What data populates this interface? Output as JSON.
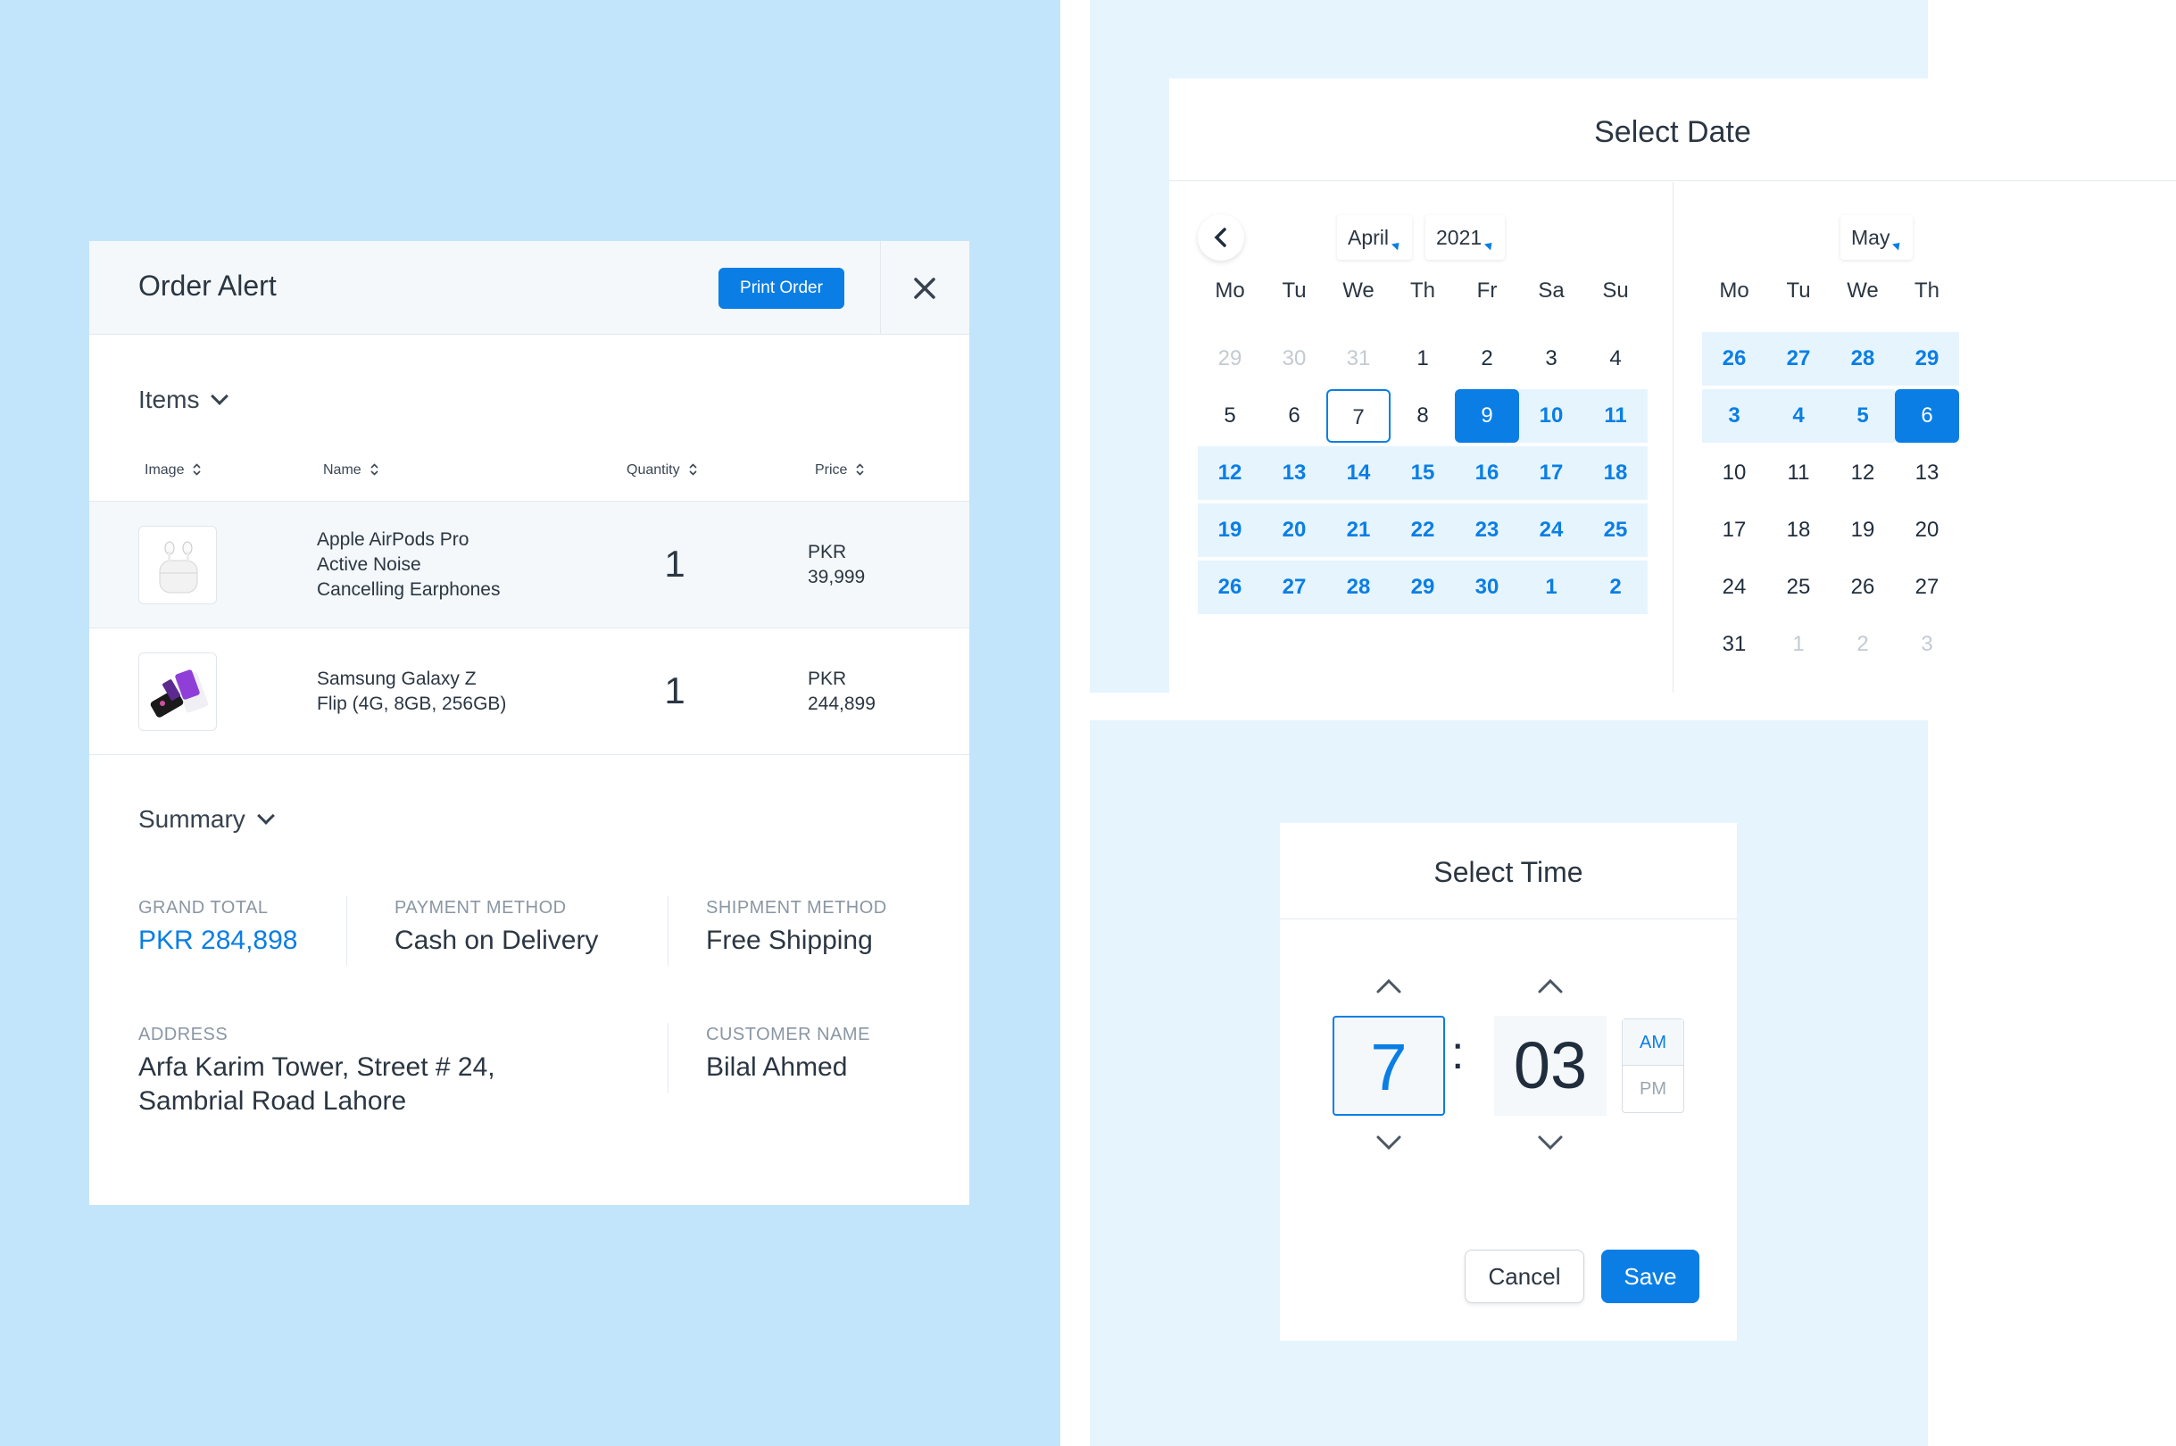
{
  "order": {
    "title": "Order Alert",
    "print_label": "Print Order",
    "items_title": "Items",
    "columns": [
      "Image",
      "Name",
      "Quantity",
      "Price"
    ],
    "items": [
      {
        "name_lines": [
          "Apple AirPods Pro",
          "Active Noise",
          "Cancelling Earphones"
        ],
        "quantity": "1",
        "price_lines": [
          "PKR",
          "39,999"
        ]
      },
      {
        "name_lines": [
          "Samsung Galaxy Z",
          "Flip (4G, 8GB, 256GB)"
        ],
        "quantity": "1",
        "price_lines": [
          "PKR",
          "244,899"
        ]
      }
    ],
    "summary_title": "Summary",
    "summary": {
      "grand_total_label": "GRAND TOTAL",
      "grand_total": "PKR 284,898",
      "payment_label": "PAYMENT METHOD",
      "payment": "Cash on Delivery",
      "shipment_label": "SHIPMENT METHOD",
      "shipment": "Free Shipping",
      "address_label": "ADDRESS",
      "address_lines": [
        "Arfa Karim Tower, Street # 24,",
        "Sambrial Road Lahore"
      ],
      "customer_label": "CUSTOMER NAME",
      "customer": "Bilal Ahmed"
    },
    "accent_color": "#0a7ee5"
  },
  "date_picker": {
    "title": "Select Date",
    "weekdays": [
      "Mo",
      "Tu",
      "We",
      "Th",
      "Fr",
      "Sa",
      "Su"
    ],
    "left": {
      "month": "April",
      "year": "2021",
      "weeks": [
        [
          {
            "d": "29",
            "s": "muted"
          },
          {
            "d": "30",
            "s": "muted"
          },
          {
            "d": "31",
            "s": "muted"
          },
          {
            "d": "1"
          },
          {
            "d": "2"
          },
          {
            "d": "3"
          },
          {
            "d": "4"
          }
        ],
        [
          {
            "d": "5"
          },
          {
            "d": "6"
          },
          {
            "d": "7",
            "s": "today"
          },
          {
            "d": "8"
          },
          {
            "d": "9",
            "s": "selected"
          },
          {
            "d": "10",
            "s": "range"
          },
          {
            "d": "11",
            "s": "range"
          }
        ],
        [
          {
            "d": "12",
            "s": "range"
          },
          {
            "d": "13",
            "s": "range"
          },
          {
            "d": "14",
            "s": "range"
          },
          {
            "d": "15",
            "s": "range"
          },
          {
            "d": "16",
            "s": "range"
          },
          {
            "d": "17",
            "s": "range"
          },
          {
            "d": "18",
            "s": "range"
          }
        ],
        [
          {
            "d": "19",
            "s": "range"
          },
          {
            "d": "20",
            "s": "range"
          },
          {
            "d": "21",
            "s": "range"
          },
          {
            "d": "22",
            "s": "range"
          },
          {
            "d": "23",
            "s": "range"
          },
          {
            "d": "24",
            "s": "range"
          },
          {
            "d": "25",
            "s": "range"
          }
        ],
        [
          {
            "d": "26",
            "s": "range"
          },
          {
            "d": "27",
            "s": "range"
          },
          {
            "d": "28",
            "s": "range"
          },
          {
            "d": "29",
            "s": "range"
          },
          {
            "d": "30",
            "s": "range"
          },
          {
            "d": "1",
            "s": "range-muted"
          },
          {
            "d": "2",
            "s": "range-muted"
          }
        ]
      ]
    },
    "right": {
      "month": "May",
      "weeks": [
        [
          {
            "d": "26",
            "s": "range-muted"
          },
          {
            "d": "27",
            "s": "range-muted"
          },
          {
            "d": "28",
            "s": "range-muted"
          },
          {
            "d": "29",
            "s": "range-muted"
          }
        ],
        [
          {
            "d": "3",
            "s": "range"
          },
          {
            "d": "4",
            "s": "range"
          },
          {
            "d": "5",
            "s": "range"
          },
          {
            "d": "6",
            "s": "selected"
          }
        ],
        [
          {
            "d": "10"
          },
          {
            "d": "11"
          },
          {
            "d": "12"
          },
          {
            "d": "13"
          }
        ],
        [
          {
            "d": "17"
          },
          {
            "d": "18"
          },
          {
            "d": "19"
          },
          {
            "d": "20"
          }
        ],
        [
          {
            "d": "24"
          },
          {
            "d": "25"
          },
          {
            "d": "26"
          },
          {
            "d": "27"
          }
        ],
        [
          {
            "d": "31"
          },
          {
            "d": "1",
            "s": "muted"
          },
          {
            "d": "2",
            "s": "muted"
          },
          {
            "d": "3",
            "s": "muted"
          }
        ]
      ]
    }
  },
  "time_picker": {
    "title": "Select Time",
    "hour": "7",
    "minute": "03",
    "colon": ":",
    "am": "AM",
    "pm": "PM",
    "cancel_label": "Cancel",
    "save_label": "Save"
  }
}
